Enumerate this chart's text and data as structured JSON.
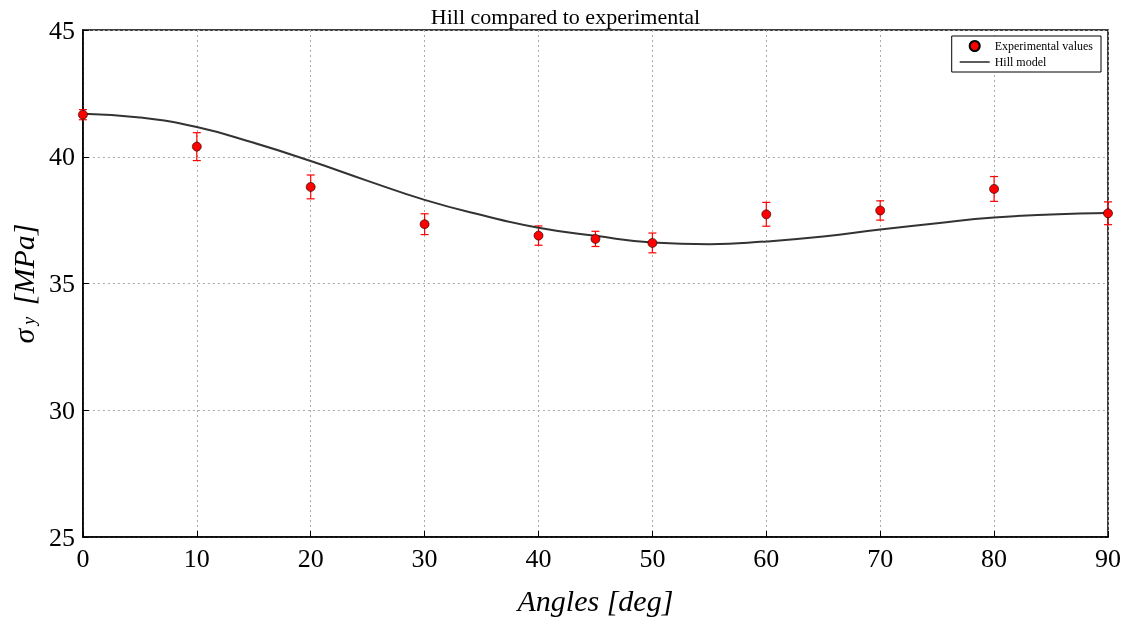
{
  "chart_data": {
    "type": "scatter",
    "title": "Hill compared to experimental",
    "xlabel": "Angles [deg]",
    "ylabel": "σ$_{y}$ [MPa]",
    "xlim": [
      0,
      90
    ],
    "xticks": [
      0,
      10,
      20,
      30,
      40,
      50,
      60,
      70,
      80,
      90
    ],
    "ylim": [
      25,
      45
    ],
    "yticks": [
      25,
      30,
      35,
      40,
      45
    ],
    "grid": true,
    "legend": "top right",
    "marker": "circle",
    "series": [
      {
        "name": "Experimental values",
        "color": "#ff0000",
        "x": [
          0,
          10,
          20,
          30,
          40,
          45,
          50,
          60,
          70,
          80,
          90
        ],
        "values": [
          41.66,
          40.4,
          38.81,
          37.34,
          36.89,
          36.76,
          36.6,
          37.73,
          37.88,
          38.73,
          37.77
        ],
        "errors": [
          0.2,
          0.55,
          0.47,
          0.41,
          0.38,
          0.3,
          0.39,
          0.47,
          0.38,
          0.49,
          0.45
        ]
      },
      {
        "name": "Hill model",
        "type": "line",
        "color": "#333333",
        "marker": "none",
        "line_style": "solid",
        "x": [
          0,
          5,
          10,
          15,
          20,
          25,
          30,
          35,
          40,
          45,
          50,
          55,
          60,
          65,
          70,
          75,
          80,
          85,
          90
        ],
        "values": [
          41.7,
          41.55,
          41.17,
          40.55,
          39.83,
          39.05,
          38.3,
          37.7,
          37.2,
          36.88,
          36.62,
          36.55,
          36.66,
          36.85,
          37.13,
          37.38,
          37.6,
          37.72,
          37.78
        ]
      }
    ]
  }
}
